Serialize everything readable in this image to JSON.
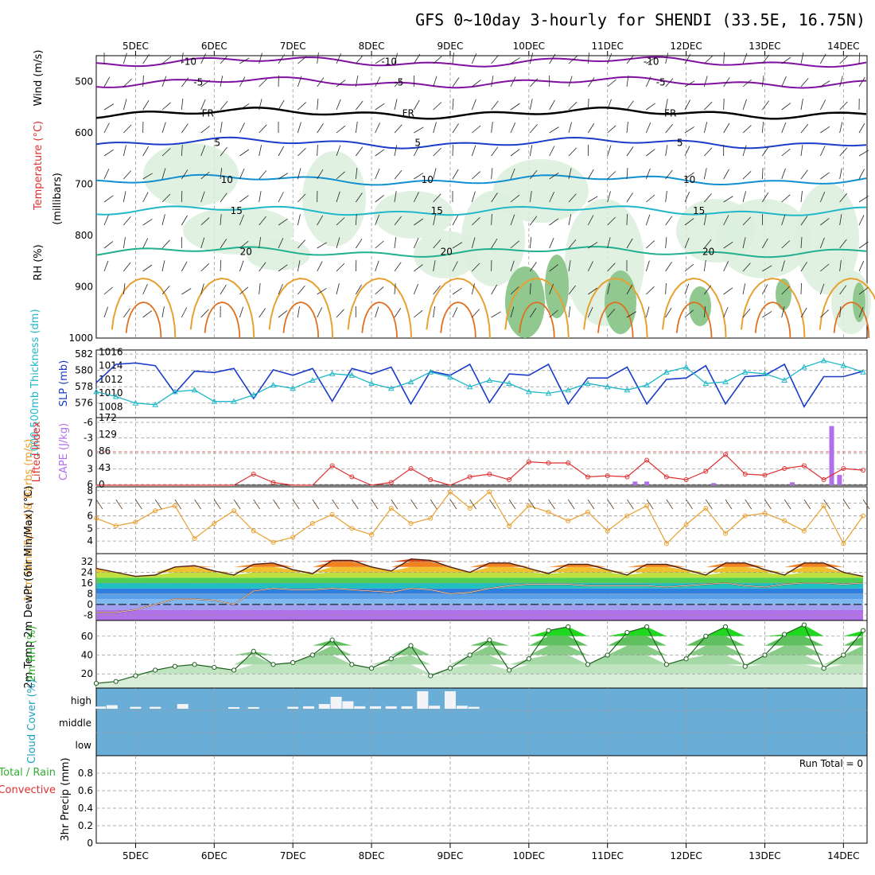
{
  "title": "GFS 0~10day 3-hourly for SHENDI (33.5E, 16.75N)",
  "date_labels": [
    "5DEC",
    "6DEC",
    "7DEC",
    "8DEC",
    "9DEC",
    "10DEC",
    "11DEC",
    "12DEC",
    "13DEC",
    "14DEC"
  ],
  "colors": {
    "cyan": "#20b8c8",
    "blue": "#1a3cc8",
    "red": "#e03030",
    "purple": "#b070e8",
    "orange": "#e8a030",
    "green": "#30c030",
    "cloud_bg": "#6aaed8",
    "violet": "#8010a0"
  },
  "chart_data": [
    {
      "id": "upper-air",
      "type": "heatmap",
      "ylabel_parts": [
        "RH (%)",
        "Temperature (°C)",
        "Wind (m/s)"
      ],
      "ylabel_units": "(millibars)",
      "yticks": [
        500,
        600,
        700,
        800,
        900,
        1000
      ],
      "ylim": [
        1000,
        450
      ],
      "isotherms": [
        {
          "label": "-10",
          "p": 462
        },
        {
          "label": "-5",
          "p": 502
        },
        {
          "label": "FR",
          "p": 562
        },
        {
          "label": "5",
          "p": 620
        },
        {
          "label": "10",
          "p": 692
        },
        {
          "label": "15",
          "p": 752
        },
        {
          "label": "20",
          "p": 832
        }
      ]
    },
    {
      "id": "thickness-slp",
      "type": "line",
      "ylabel_left": "1000-500mb Thickness (dm)",
      "ylabel_right": "SLP (mb)",
      "yticks_left": [
        576,
        578,
        580,
        582
      ],
      "yticks_right": [
        1008,
        1010,
        1012,
        1014,
        1016
      ],
      "x": [
        4.5,
        4.75,
        5.0,
        5.25,
        5.5,
        5.75,
        6.0,
        6.25,
        6.5,
        6.75,
        7.0,
        7.25,
        7.5,
        7.75,
        8.0,
        8.25,
        8.5,
        8.75,
        9.0,
        9.25,
        9.5,
        9.75,
        10.0,
        10.25,
        10.5,
        10.75,
        11.0,
        11.25,
        11.5,
        11.75,
        12.0,
        12.25,
        12.5,
        12.75,
        13.0,
        13.25,
        13.5,
        13.75,
        14.0,
        14.25
      ],
      "series": [
        {
          "name": "SLP",
          "axis": "right",
          "values": [
            1011.5,
            1014.2,
            1014.4,
            1014.0,
            1010.0,
            1013.2,
            1013.0,
            1013.6,
            1009.2,
            1013.4,
            1012.6,
            1013.6,
            1008.8,
            1013.6,
            1012.8,
            1013.8,
            1008.4,
            1013.2,
            1012.6,
            1014.2,
            1008.6,
            1012.8,
            1012.6,
            1014.2,
            1008.4,
            1012.2,
            1012.2,
            1013.8,
            1008.4,
            1012.0,
            1012.2,
            1014.0,
            1008.4,
            1012.4,
            1012.6,
            1014.2,
            1008.0,
            1012.4,
            1012.4,
            1013.2
          ]
        },
        {
          "name": "Thickness",
          "axis": "left",
          "values": [
            577.4,
            576.8,
            576.0,
            575.8,
            577.4,
            577.6,
            576.2,
            576.2,
            577.0,
            578.2,
            577.8,
            578.8,
            579.6,
            579.4,
            578.4,
            577.8,
            578.6,
            579.8,
            579.2,
            578.0,
            578.8,
            578.4,
            577.4,
            577.2,
            577.6,
            578.4,
            578.0,
            577.6,
            578.2,
            579.8,
            580.4,
            578.4,
            578.6,
            579.8,
            579.6,
            578.8,
            580.4,
            581.2,
            580.6,
            579.8
          ]
        }
      ]
    },
    {
      "id": "cape-li",
      "type": "bar",
      "ylabel_left": "Lifted Index",
      "ylabel_right": "CAPE (J/kg)",
      "yticks_left": [
        "-6",
        "-3",
        "0",
        "3",
        "6"
      ],
      "yticks_right": [
        "172",
        "129",
        "86",
        "43",
        "0"
      ],
      "x": [
        11.35,
        11.5,
        12.35,
        13.35,
        13.85,
        13.95
      ],
      "values": [
        10,
        10,
        6,
        8,
        160,
        28
      ],
      "li_x": [
        4.5,
        4.75,
        5.0,
        5.25,
        5.5,
        5.75,
        6.0,
        6.25,
        6.5,
        6.75,
        7.0,
        7.25,
        7.5,
        7.75,
        8.0,
        8.25,
        8.5,
        8.75,
        9.0,
        9.25,
        9.5,
        9.75,
        10.0,
        10.25,
        10.5,
        10.75,
        11.0,
        11.25,
        11.5,
        11.75,
        12.0,
        12.25,
        12.5,
        12.75,
        13.0,
        13.25,
        13.5,
        13.75,
        14.0,
        14.25
      ],
      "li_values": [
        7,
        7,
        7,
        7,
        6,
        7,
        7,
        7,
        4,
        5.5,
        7,
        6.5,
        2.5,
        4.5,
        6,
        5.5,
        3,
        5,
        7,
        4.5,
        4,
        5,
        1.8,
        2,
        2,
        4.5,
        4.3,
        4.5,
        1.5,
        4.5,
        5,
        3.5,
        0.5,
        4,
        4.2,
        3,
        2.5,
        5,
        3,
        3.3
      ]
    },
    {
      "id": "wind10m",
      "type": "line",
      "ylabel": "10m Wind Speed & Barbs (m/s)",
      "yticks": [
        4,
        5,
        6,
        7,
        8
      ],
      "x": [
        4.5,
        4.75,
        5.0,
        5.25,
        5.5,
        5.75,
        6.0,
        6.25,
        6.5,
        6.75,
        7.0,
        7.25,
        7.5,
        7.75,
        8.0,
        8.25,
        8.5,
        8.75,
        9.0,
        9.25,
        9.5,
        9.75,
        10.0,
        10.25,
        10.5,
        10.75,
        11.0,
        11.25,
        11.5,
        11.75,
        12.0,
        12.25,
        12.5,
        12.75,
        13.0,
        13.25,
        13.5,
        13.75,
        14.0,
        14.25
      ],
      "values": [
        5.8,
        5.2,
        5.5,
        6.4,
        6.8,
        4.2,
        5.4,
        6.4,
        4.8,
        3.9,
        4.3,
        5.4,
        6.1,
        5.0,
        4.5,
        6.6,
        5.4,
        5.8,
        7.9,
        6.6,
        7.9,
        5.2,
        6.8,
        6.3,
        5.6,
        6.3,
        4.8,
        6.0,
        6.8,
        3.8,
        5.3,
        6.6,
        4.6,
        6.0,
        6.2,
        5.6,
        4.8,
        6.8,
        3.8,
        6.0
      ]
    },
    {
      "id": "temp2m",
      "type": "area",
      "ylabel": "2m Temp 2m DewPt (6hr Min/Max) (°C)",
      "yticks": [
        "32",
        "24",
        "16",
        "8",
        "0",
        "-8"
      ],
      "x": [
        4.5,
        4.75,
        5.0,
        5.25,
        5.5,
        5.75,
        6.0,
        6.25,
        6.5,
        6.75,
        7.0,
        7.25,
        7.5,
        7.75,
        8.0,
        8.25,
        8.5,
        8.75,
        9.0,
        9.25,
        9.5,
        9.75,
        10.0,
        10.25,
        10.5,
        10.75,
        11.0,
        11.25,
        11.5,
        11.75,
        12.0,
        12.25,
        12.5,
        12.75,
        13.0,
        13.25,
        13.5,
        13.75,
        14.0,
        14.25
      ],
      "series": [
        {
          "name": "Temp",
          "values": [
            27,
            24,
            21,
            22,
            28,
            29,
            25,
            22,
            30,
            31,
            26,
            23,
            33,
            33,
            28,
            25,
            34,
            33,
            28,
            24,
            31,
            31,
            27,
            23,
            30,
            30,
            26,
            22,
            30,
            30,
            26,
            22,
            31,
            31,
            26,
            22,
            31,
            31,
            24,
            21
          ]
        },
        {
          "name": "DewPt",
          "values": [
            -6,
            -6,
            -4,
            0,
            4,
            4,
            3,
            0,
            10,
            12,
            11,
            11,
            12,
            11,
            10,
            9,
            12,
            11,
            8,
            9,
            12,
            14,
            15,
            15,
            15,
            14,
            14,
            14,
            14,
            13,
            14,
            15,
            16,
            14,
            13,
            15,
            16,
            16,
            15,
            16
          ]
        }
      ]
    },
    {
      "id": "rh2m",
      "type": "area",
      "ylabel": "2m RH (%)",
      "yticks": [
        20,
        40,
        60
      ],
      "x": [
        4.5,
        4.75,
        5.0,
        5.25,
        5.5,
        5.75,
        6.0,
        6.25,
        6.5,
        6.75,
        7.0,
        7.25,
        7.5,
        7.75,
        8.0,
        8.25,
        8.5,
        8.75,
        9.0,
        9.25,
        9.5,
        9.75,
        10.0,
        10.25,
        10.5,
        10.75,
        11.0,
        11.25,
        11.5,
        11.75,
        12.0,
        12.25,
        12.5,
        12.75,
        13.0,
        13.25,
        13.5,
        13.75,
        14.0,
        14.25
      ],
      "values": [
        10,
        12,
        18,
        24,
        28,
        30,
        27,
        24,
        44,
        30,
        32,
        40,
        56,
        30,
        26,
        36,
        50,
        18,
        26,
        40,
        56,
        24,
        36,
        66,
        70,
        30,
        40,
        64,
        70,
        30,
        36,
        60,
        70,
        28,
        40,
        62,
        72,
        26,
        40,
        66
      ]
    },
    {
      "id": "cloud",
      "type": "bar",
      "ylabel": "Cloud Cover (%)",
      "levels": [
        "high",
        "middle",
        "low"
      ],
      "x": [
        4.55,
        4.7,
        5.0,
        5.25,
        5.6,
        6.25,
        6.5,
        7.0,
        7.2,
        7.4,
        7.55,
        7.7,
        7.85,
        8.05,
        8.25,
        8.45,
        8.65,
        8.8,
        9.0,
        9.15,
        9.3
      ],
      "values": [
        5,
        10,
        4,
        4,
        14,
        3,
        3,
        4,
        6,
        14,
        40,
        24,
        6,
        6,
        6,
        6,
        60,
        8,
        60,
        8,
        4
      ]
    },
    {
      "id": "precip",
      "type": "bar",
      "ylabel": "3hr Precip (mm)",
      "legend": [
        "Total / Rain",
        "Convective"
      ],
      "annotation": "Run Total = 0",
      "yticks": [
        "0",
        "0.2",
        "0.4",
        "0.6",
        "0.8"
      ],
      "x": [],
      "values": []
    }
  ]
}
